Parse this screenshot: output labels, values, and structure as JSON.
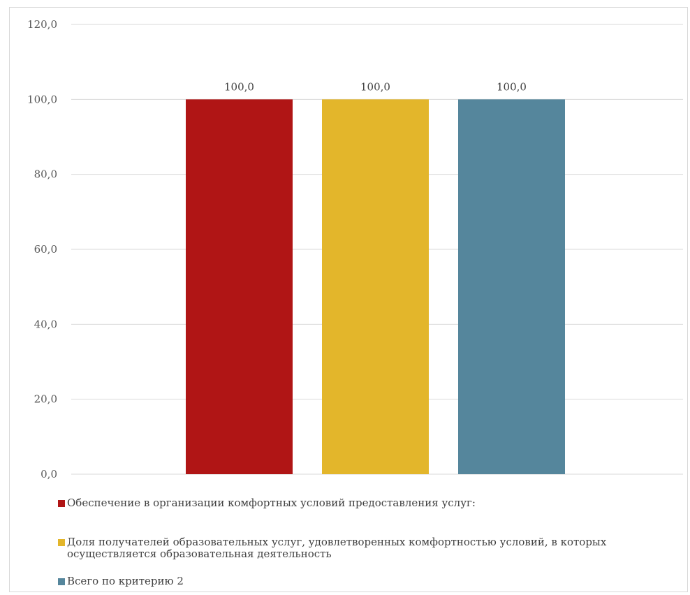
{
  "chart_data": {
    "type": "bar",
    "title": "",
    "xlabel": "",
    "ylabel": "",
    "ylim": [
      0,
      120
    ],
    "yticks": [
      "0,0",
      "20,0",
      "40,0",
      "60,0",
      "80,0",
      "100,0",
      "120,0"
    ],
    "ytick_values": [
      0,
      20,
      40,
      60,
      80,
      100,
      120
    ],
    "grid": true,
    "legend_position": "bottom",
    "series": [
      {
        "name": "Обеспечение в организации комфортных условий предоставления услуг:",
        "value": 100.0,
        "label": "100,0",
        "color": "#b01515"
      },
      {
        "name": "Доля получателей образовательных услуг, удовлетворенных комфортностью условий, в которых осуществляется образовательная деятельность",
        "value": 100.0,
        "label": "100,0",
        "color": "#e3b62b"
      },
      {
        "name": "Всего по критерию 2",
        "value": 100.0,
        "label": "100,0",
        "color": "#55869c"
      }
    ]
  }
}
